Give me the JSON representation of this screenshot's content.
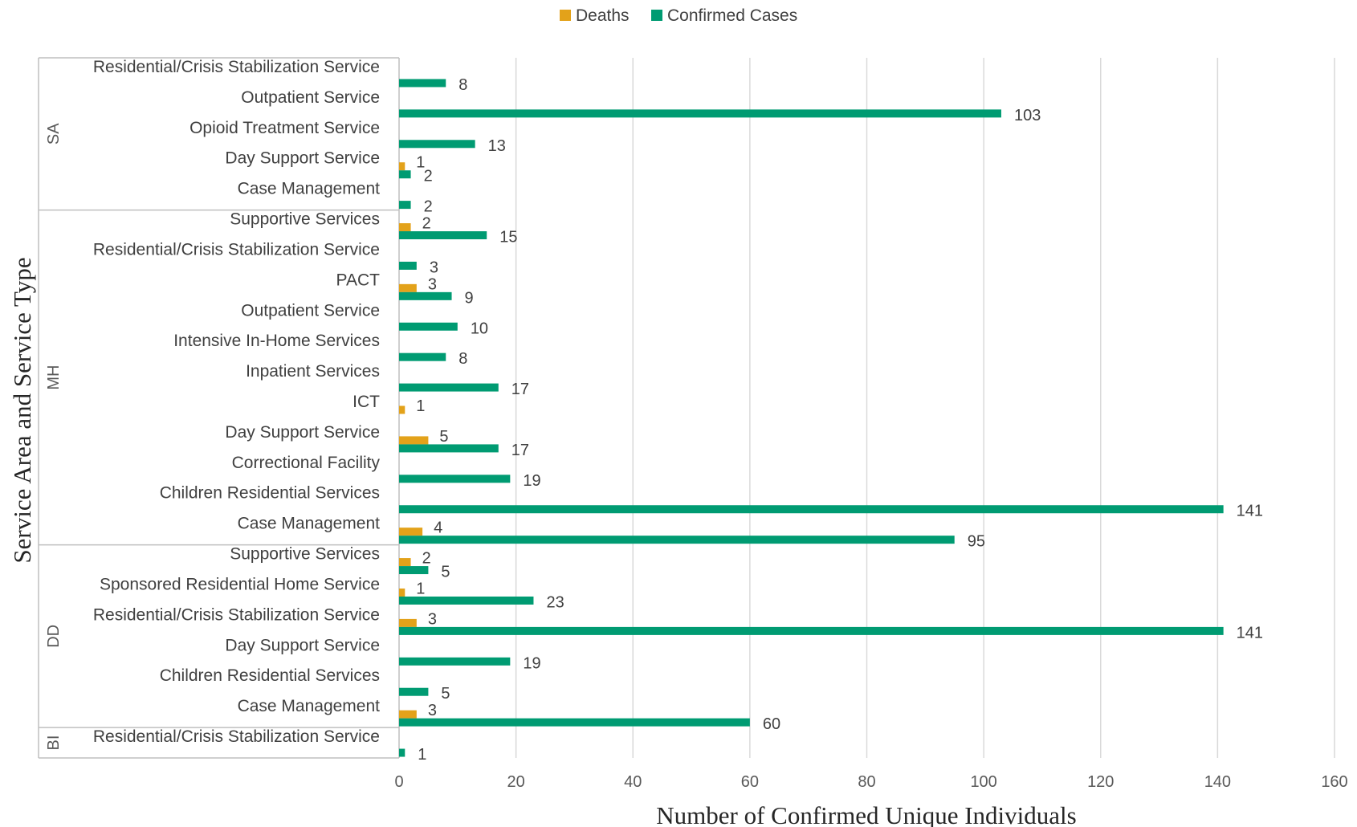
{
  "chart_data": {
    "type": "bar",
    "orientation": "horizontal",
    "xlabel": "Number of Confirmed Unique Individuals",
    "ylabel": "Service Area and Service Type",
    "xlim": [
      0,
      160
    ],
    "xticks": [
      0,
      20,
      40,
      60,
      80,
      100,
      120,
      140,
      160
    ],
    "grid": true,
    "legend_position": "top",
    "legend": [
      {
        "name": "Deaths",
        "color": "#E3A21A"
      },
      {
        "name": "Confirmed Cases",
        "color": "#009B72"
      }
    ],
    "groups": [
      {
        "name": "SA",
        "categories": [
          {
            "label": "Residential/Crisis Stabilization Service",
            "deaths": null,
            "confirmed": 8
          },
          {
            "label": "Outpatient Service",
            "deaths": null,
            "confirmed": 103
          },
          {
            "label": "Opioid Treatment Service",
            "deaths": null,
            "confirmed": 13
          },
          {
            "label": "Day Support Service",
            "deaths": 1,
            "confirmed": 2
          },
          {
            "label": "Case Management",
            "deaths": null,
            "confirmed": 2
          }
        ]
      },
      {
        "name": "MH",
        "categories": [
          {
            "label": "Supportive Services",
            "deaths": 2,
            "confirmed": 15
          },
          {
            "label": "Residential/Crisis Stabilization Service",
            "deaths": null,
            "confirmed": 3
          },
          {
            "label": "PACT",
            "deaths": 3,
            "confirmed": 9
          },
          {
            "label": "Outpatient Service",
            "deaths": null,
            "confirmed": 10
          },
          {
            "label": "Intensive In-Home Services",
            "deaths": null,
            "confirmed": 8
          },
          {
            "label": "Inpatient Services",
            "deaths": null,
            "confirmed": 17
          },
          {
            "label": "ICT",
            "deaths": 1,
            "confirmed": null
          },
          {
            "label": "Day Support Service",
            "deaths": 5,
            "confirmed": 17
          },
          {
            "label": "Correctional Facility",
            "deaths": null,
            "confirmed": 19
          },
          {
            "label": "Children Residential Services",
            "deaths": null,
            "confirmed": 141
          },
          {
            "label": "Case Management",
            "deaths": 4,
            "confirmed": 95
          }
        ]
      },
      {
        "name": "DD",
        "categories": [
          {
            "label": "Supportive Services",
            "deaths": 2,
            "confirmed": 5
          },
          {
            "label": "Sponsored Residential Home Service",
            "deaths": 1,
            "confirmed": 23
          },
          {
            "label": "Residential/Crisis Stabilization Service",
            "deaths": 3,
            "confirmed": 141
          },
          {
            "label": "Day Support Service",
            "deaths": null,
            "confirmed": 19
          },
          {
            "label": "Children Residential Services",
            "deaths": null,
            "confirmed": 5
          },
          {
            "label": "Case Management",
            "deaths": 3,
            "confirmed": 60
          }
        ]
      },
      {
        "name": "BI",
        "categories": [
          {
            "label": "Residential/Crisis Stabilization Service",
            "deaths": null,
            "confirmed": 1
          }
        ]
      }
    ]
  }
}
